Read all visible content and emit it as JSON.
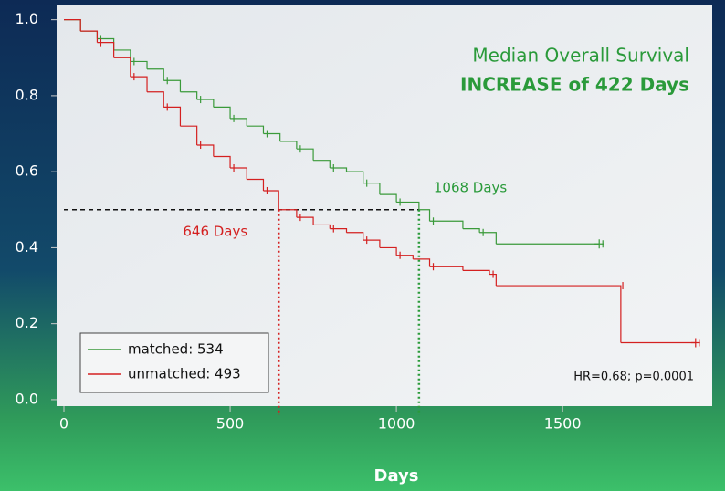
{
  "chart_data": {
    "type": "step",
    "title": "Median Overall Survival",
    "subtitle": "INCREASE of 422 Days",
    "x_label": "Days",
    "xlim": [
      -22,
      1950
    ],
    "ylim": [
      -0.017,
      1.04
    ],
    "xticks": [
      0,
      500,
      1000,
      1500
    ],
    "yticks": [
      {
        "value": 0,
        "label": "0.0"
      },
      0.2,
      0.4,
      0.6,
      0.8,
      {
        "value": 1,
        "label": "1.0"
      }
    ],
    "series": [
      {
        "name": "matched: 534",
        "color": "#3a9a3a",
        "x": [
          0,
          50,
          100,
          150,
          200,
          250,
          300,
          350,
          400,
          450,
          500,
          550,
          600,
          650,
          700,
          750,
          800,
          850,
          900,
          950,
          1000,
          1068,
          1100,
          1200,
          1250,
          1300,
          1610
        ],
        "values": [
          1.0,
          0.97,
          0.95,
          0.92,
          0.89,
          0.87,
          0.84,
          0.81,
          0.79,
          0.77,
          0.74,
          0.72,
          0.7,
          0.68,
          0.66,
          0.63,
          0.61,
          0.6,
          0.57,
          0.54,
          0.52,
          0.5,
          0.47,
          0.45,
          0.44,
          0.41,
          0.41
        ]
      },
      {
        "name": "unmatched: 493",
        "color": "#d42020",
        "x": [
          0,
          50,
          100,
          150,
          200,
          250,
          300,
          350,
          400,
          450,
          500,
          550,
          600,
          646,
          700,
          750,
          800,
          850,
          900,
          950,
          1000,
          1050,
          1100,
          1200,
          1280,
          1300,
          1670,
          1675,
          1900
        ],
        "values": [
          1.0,
          0.97,
          0.94,
          0.9,
          0.85,
          0.81,
          0.77,
          0.72,
          0.67,
          0.64,
          0.61,
          0.58,
          0.55,
          0.5,
          0.48,
          0.46,
          0.45,
          0.44,
          0.42,
          0.4,
          0.38,
          0.37,
          0.35,
          0.34,
          0.33,
          0.3,
          0.3,
          0.15,
          0.15
        ]
      }
    ],
    "median_lines": [
      {
        "x": 646,
        "y": 0.5,
        "label": "646 Days",
        "color": "#d42020"
      },
      {
        "x": 1068,
        "y": 0.5,
        "label": "1068 Days",
        "color": "#2a9a3a"
      }
    ],
    "annotation": "HR=0.68; p=0.0001"
  }
}
